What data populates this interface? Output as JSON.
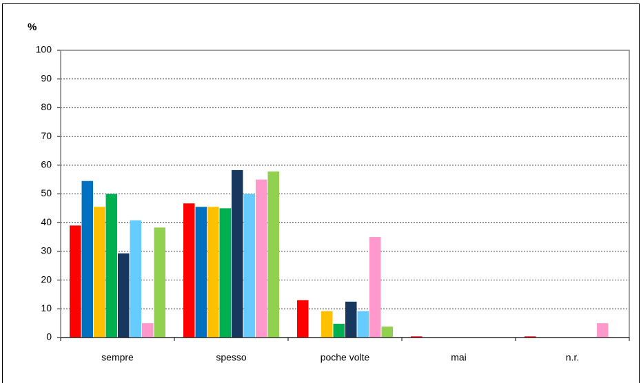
{
  "chart_data": {
    "type": "bar",
    "y_label": "%",
    "categories": [
      "sempre",
      "spesso",
      "poche volte",
      "mai",
      "n.r."
    ],
    "series": [
      {
        "color": "#ff0000",
        "values": [
          39,
          46.7,
          13,
          0.4,
          0.4
        ]
      },
      {
        "color": "#0070c0",
        "values": [
          54.5,
          45.5,
          0,
          0,
          0
        ]
      },
      {
        "color": "#ffc000",
        "values": [
          45.5,
          45.5,
          9.2,
          0,
          0
        ]
      },
      {
        "color": "#00b050",
        "values": [
          50,
          45,
          4.8,
          0,
          0
        ]
      },
      {
        "color": "#17375e",
        "values": [
          29.3,
          58.3,
          12.5,
          0,
          0
        ]
      },
      {
        "color": "#66ccff",
        "values": [
          40.8,
          50,
          9.2,
          0,
          0
        ]
      },
      {
        "color": "#ff99cc",
        "values": [
          5,
          55,
          35,
          0,
          5
        ]
      },
      {
        "color": "#92d050",
        "values": [
          38.3,
          57.8,
          3.8,
          0,
          0
        ]
      }
    ],
    "ylim": [
      0,
      100
    ],
    "yticks": [
      0,
      10,
      20,
      30,
      40,
      50,
      60,
      70,
      80,
      90,
      100
    ],
    "grid": true
  }
}
